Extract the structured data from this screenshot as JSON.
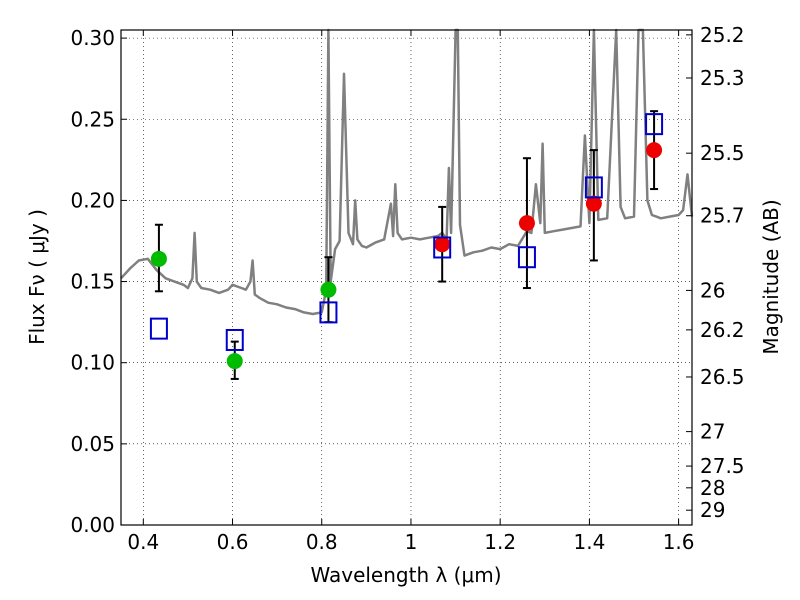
{
  "chart_data": {
    "type": "scatter",
    "title": "",
    "xlabel": "Wavelength  λ (μm)",
    "ylabel": "Flux  Fν  ( μJy )",
    "y2label": "Magnitude (AB)",
    "xlim": [
      0.35,
      1.63
    ],
    "ylim": [
      0.0,
      0.305
    ],
    "grid": true,
    "x_ticks": [
      0.4,
      0.6,
      0.8,
      1.0,
      1.2,
      1.4,
      1.6
    ],
    "x_tick_labels": [
      "0.4",
      "0.6",
      "0.8",
      "1",
      "1.2",
      "1.4",
      "1.6"
    ],
    "y_ticks": [
      0.0,
      0.05,
      0.1,
      0.15,
      0.2,
      0.25,
      0.3
    ],
    "y_tick_labels": [
      "0.00",
      "0.05",
      "0.10",
      "0.15",
      "0.20",
      "0.25",
      "0.30"
    ],
    "mag_ticks": [
      25.2,
      25.3,
      25.5,
      25.7,
      26,
      26.2,
      26.5,
      27,
      27.5,
      28,
      29
    ],
    "mag_tick_labels": [
      "25.2",
      "25.3",
      "25.5",
      "25.7",
      "26",
      "26.2",
      "26.5",
      "27",
      "27.5",
      "28",
      "29"
    ],
    "colors": {
      "model": "#808080",
      "green": "#00bb00",
      "red": "#ee0000",
      "square": "#0000cc",
      "errorbar": "#000000"
    },
    "series": [
      {
        "name": "green points",
        "marker": "circle",
        "color": "#00bb00",
        "x": [
          0.435,
          0.605,
          0.815
        ],
        "y": [
          0.164,
          0.101,
          0.145
        ],
        "yerr_low": [
          0.144,
          0.09,
          0.125
        ],
        "yerr_high": [
          0.185,
          0.113,
          0.165
        ]
      },
      {
        "name": "red points",
        "marker": "circle",
        "color": "#ee0000",
        "x": [
          1.07,
          1.26,
          1.41,
          1.545
        ],
        "y": [
          0.173,
          0.186,
          0.198,
          0.231
        ],
        "yerr_low": [
          0.15,
          0.146,
          0.163,
          0.207
        ],
        "yerr_high": [
          0.196,
          0.226,
          0.231,
          0.255
        ]
      },
      {
        "name": "model photometry",
        "marker": "square",
        "color": "#0000cc",
        "x": [
          0.435,
          0.605,
          0.815,
          1.07,
          1.26,
          1.41,
          1.545
        ],
        "y": [
          0.121,
          0.114,
          0.131,
          0.171,
          0.165,
          0.208,
          0.247
        ]
      }
    ],
    "model_spectrum": {
      "name": "model spectrum",
      "color": "#808080",
      "x": [
        0.35,
        0.37,
        0.39,
        0.41,
        0.43,
        0.45,
        0.47,
        0.49,
        0.5,
        0.51,
        0.515,
        0.52,
        0.53,
        0.55,
        0.57,
        0.59,
        0.6,
        0.62,
        0.63,
        0.64,
        0.645,
        0.65,
        0.66,
        0.68,
        0.7,
        0.72,
        0.74,
        0.76,
        0.78,
        0.8,
        0.81,
        0.815,
        0.82,
        0.83,
        0.84,
        0.85,
        0.86,
        0.87,
        0.875,
        0.88,
        0.89,
        0.9,
        0.92,
        0.94,
        0.955,
        0.96,
        0.965,
        0.97,
        0.98,
        1.0,
        1.02,
        1.04,
        1.06,
        1.07,
        1.08,
        1.085,
        1.09,
        1.1,
        1.105,
        1.11,
        1.12,
        1.14,
        1.16,
        1.18,
        1.2,
        1.22,
        1.24,
        1.26,
        1.27,
        1.28,
        1.29,
        1.295,
        1.3,
        1.32,
        1.34,
        1.36,
        1.38,
        1.39,
        1.4,
        1.41,
        1.42,
        1.44,
        1.46,
        1.47,
        1.48,
        1.5,
        1.51,
        1.52,
        1.53,
        1.54,
        1.55,
        1.56,
        1.58,
        1.6,
        1.61,
        1.62,
        1.63
      ],
      "y": [
        0.152,
        0.158,
        0.163,
        0.164,
        0.157,
        0.152,
        0.15,
        0.148,
        0.146,
        0.152,
        0.18,
        0.15,
        0.146,
        0.145,
        0.143,
        0.145,
        0.148,
        0.146,
        0.145,
        0.15,
        0.163,
        0.142,
        0.14,
        0.137,
        0.136,
        0.134,
        0.133,
        0.131,
        0.13,
        0.131,
        0.145,
        0.305,
        0.15,
        0.17,
        0.175,
        0.278,
        0.18,
        0.173,
        0.2,
        0.176,
        0.172,
        0.171,
        0.174,
        0.176,
        0.198,
        0.178,
        0.21,
        0.18,
        0.176,
        0.177,
        0.176,
        0.177,
        0.178,
        0.18,
        0.176,
        0.22,
        0.18,
        0.305,
        0.305,
        0.185,
        0.166,
        0.168,
        0.169,
        0.171,
        0.17,
        0.173,
        0.172,
        0.181,
        0.18,
        0.21,
        0.186,
        0.235,
        0.18,
        0.181,
        0.182,
        0.183,
        0.184,
        0.24,
        0.186,
        0.305,
        0.188,
        0.189,
        0.305,
        0.196,
        0.189,
        0.19,
        0.305,
        0.305,
        0.2,
        0.191,
        0.19,
        0.189,
        0.19,
        0.191,
        0.194,
        0.216,
        0.19
      ]
    }
  }
}
